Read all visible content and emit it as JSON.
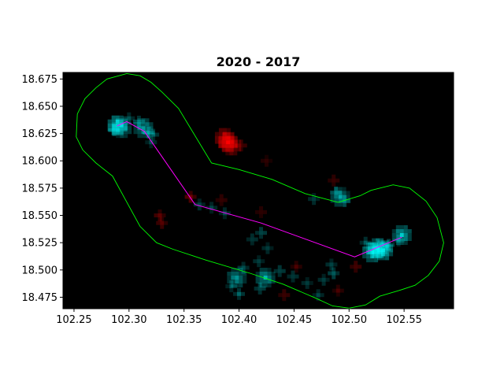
{
  "chart_data": {
    "type": "heatmap",
    "title": "2020 - 2017",
    "xlabel": "",
    "ylabel": "",
    "xlim": [
      102.24,
      102.595
    ],
    "ylim": [
      18.4645,
      18.681
    ],
    "x_ticks": [
      {
        "value": 102.25,
        "label": "102.25"
      },
      {
        "value": 102.3,
        "label": "102.30"
      },
      {
        "value": 102.35,
        "label": "102.35"
      },
      {
        "value": 102.4,
        "label": "102.40"
      },
      {
        "value": 102.45,
        "label": "102.45"
      },
      {
        "value": 102.5,
        "label": "102.50"
      },
      {
        "value": 102.55,
        "label": "102.55"
      }
    ],
    "y_ticks": [
      {
        "value": 18.675,
        "label": "18.675"
      },
      {
        "value": 18.65,
        "label": "18.650"
      },
      {
        "value": 18.625,
        "label": "18.625"
      },
      {
        "value": 18.6,
        "label": "18.600"
      },
      {
        "value": 18.575,
        "label": "18.575"
      },
      {
        "value": 18.55,
        "label": "18.550"
      },
      {
        "value": 18.525,
        "label": "18.525"
      },
      {
        "value": 18.5,
        "label": "18.500"
      },
      {
        "value": 18.475,
        "label": "18.475"
      }
    ],
    "grid": false,
    "background": "#000000",
    "colors": {
      "increase": "#00ffff",
      "decrease": "#ff0000",
      "route": "#ff00ff",
      "buffer": "#00ff00"
    },
    "route_line": [
      [
        102.289,
        18.632
      ],
      [
        102.298,
        18.636
      ],
      [
        102.314,
        18.627
      ],
      [
        102.36,
        18.56
      ],
      [
        102.42,
        18.543
      ],
      [
        102.505,
        18.512
      ],
      [
        102.548,
        18.53
      ]
    ],
    "buffer_outline": [
      [
        102.298,
        18.68
      ],
      [
        102.31,
        18.678
      ],
      [
        102.32,
        18.672
      ],
      [
        102.33,
        18.663
      ],
      [
        102.345,
        18.648
      ],
      [
        102.375,
        18.598
      ],
      [
        102.4,
        18.592
      ],
      [
        102.43,
        18.583
      ],
      [
        102.46,
        18.57
      ],
      [
        102.49,
        18.562
      ],
      [
        102.51,
        18.568
      ],
      [
        102.52,
        18.573
      ],
      [
        102.54,
        18.578
      ],
      [
        102.555,
        18.575
      ],
      [
        102.57,
        18.563
      ],
      [
        102.58,
        18.548
      ],
      [
        102.586,
        18.525
      ],
      [
        102.582,
        18.508
      ],
      [
        102.572,
        18.495
      ],
      [
        102.56,
        18.486
      ],
      [
        102.545,
        18.481
      ],
      [
        102.528,
        18.476
      ],
      [
        102.515,
        18.468
      ],
      [
        102.5,
        18.465
      ],
      [
        102.485,
        18.467
      ],
      [
        102.47,
        18.474
      ],
      [
        102.44,
        18.487
      ],
      [
        102.41,
        18.497
      ],
      [
        102.37,
        18.509
      ],
      [
        102.34,
        18.519
      ],
      [
        102.325,
        18.525
      ],
      [
        102.31,
        18.54
      ],
      [
        102.285,
        18.586
      ],
      [
        102.27,
        18.598
      ],
      [
        102.258,
        18.61
      ],
      [
        102.252,
        18.622
      ],
      [
        102.253,
        18.643
      ],
      [
        102.26,
        18.657
      ],
      [
        102.27,
        18.667
      ],
      [
        102.28,
        18.675
      ],
      [
        102.298,
        18.68
      ]
    ],
    "hotspots": [
      {
        "x": 102.2895,
        "y": 18.6325,
        "value": 1.0,
        "sign": "increase"
      },
      {
        "x": 102.2935,
        "y": 18.63,
        "value": 0.55,
        "sign": "increase"
      },
      {
        "x": 102.2865,
        "y": 18.628,
        "value": 0.45,
        "sign": "increase"
      },
      {
        "x": 102.3,
        "y": 18.639,
        "value": 0.35,
        "sign": "increase"
      },
      {
        "x": 102.309,
        "y": 18.636,
        "value": 0.4,
        "sign": "increase"
      },
      {
        "x": 102.313,
        "y": 18.63,
        "value": 0.6,
        "sign": "increase"
      },
      {
        "x": 102.318,
        "y": 18.626,
        "value": 0.45,
        "sign": "increase"
      },
      {
        "x": 102.322,
        "y": 18.624,
        "value": 0.35,
        "sign": "increase"
      },
      {
        "x": 102.32,
        "y": 18.617,
        "value": 0.25,
        "sign": "increase"
      },
      {
        "x": 102.39,
        "y": 18.617,
        "value": 0.9,
        "sign": "decrease"
      },
      {
        "x": 102.387,
        "y": 18.621,
        "value": 0.8,
        "sign": "decrease"
      },
      {
        "x": 102.393,
        "y": 18.614,
        "value": 0.7,
        "sign": "decrease"
      },
      {
        "x": 102.402,
        "y": 18.614,
        "value": 0.3,
        "sign": "decrease"
      },
      {
        "x": 102.328,
        "y": 18.55,
        "value": 0.4,
        "sign": "decrease"
      },
      {
        "x": 102.33,
        "y": 18.543,
        "value": 0.35,
        "sign": "decrease"
      },
      {
        "x": 102.356,
        "y": 18.567,
        "value": 0.45,
        "sign": "decrease"
      },
      {
        "x": 102.364,
        "y": 18.56,
        "value": 0.25,
        "sign": "increase"
      },
      {
        "x": 102.375,
        "y": 18.557,
        "value": 0.25,
        "sign": "increase"
      },
      {
        "x": 102.387,
        "y": 18.552,
        "value": 0.25,
        "sign": "increase"
      },
      {
        "x": 102.492,
        "y": 18.567,
        "value": 0.55,
        "sign": "increase"
      },
      {
        "x": 102.488,
        "y": 18.571,
        "value": 0.35,
        "sign": "increase"
      },
      {
        "x": 102.496,
        "y": 18.563,
        "value": 0.3,
        "sign": "increase"
      },
      {
        "x": 102.486,
        "y": 18.582,
        "value": 0.25,
        "sign": "decrease"
      },
      {
        "x": 102.526,
        "y": 18.52,
        "value": 1.0,
        "sign": "increase"
      },
      {
        "x": 102.531,
        "y": 18.518,
        "value": 0.9,
        "sign": "increase"
      },
      {
        "x": 102.521,
        "y": 18.516,
        "value": 0.8,
        "sign": "increase"
      },
      {
        "x": 102.536,
        "y": 18.523,
        "value": 0.45,
        "sign": "increase"
      },
      {
        "x": 102.545,
        "y": 18.527,
        "value": 0.35,
        "sign": "increase"
      },
      {
        "x": 102.548,
        "y": 18.532,
        "value": 0.7,
        "sign": "increase"
      },
      {
        "x": 102.515,
        "y": 18.525,
        "value": 0.3,
        "sign": "increase"
      },
      {
        "x": 102.506,
        "y": 18.503,
        "value": 0.35,
        "sign": "decrease"
      },
      {
        "x": 102.412,
        "y": 18.528,
        "value": 0.25,
        "sign": "increase"
      },
      {
        "x": 102.42,
        "y": 18.534,
        "value": 0.3,
        "sign": "increase"
      },
      {
        "x": 102.426,
        "y": 18.52,
        "value": 0.25,
        "sign": "increase"
      },
      {
        "x": 102.418,
        "y": 18.508,
        "value": 0.25,
        "sign": "increase"
      },
      {
        "x": 102.404,
        "y": 18.502,
        "value": 0.3,
        "sign": "increase"
      },
      {
        "x": 102.398,
        "y": 18.493,
        "value": 0.55,
        "sign": "increase"
      },
      {
        "x": 102.393,
        "y": 18.485,
        "value": 0.3,
        "sign": "increase"
      },
      {
        "x": 102.4,
        "y": 18.478,
        "value": 0.35,
        "sign": "increase"
      },
      {
        "x": 102.424,
        "y": 18.493,
        "value": 0.6,
        "sign": "increase"
      },
      {
        "x": 102.419,
        "y": 18.483,
        "value": 0.35,
        "sign": "increase"
      },
      {
        "x": 102.437,
        "y": 18.499,
        "value": 0.3,
        "sign": "increase"
      },
      {
        "x": 102.449,
        "y": 18.494,
        "value": 0.25,
        "sign": "increase"
      },
      {
        "x": 102.462,
        "y": 18.488,
        "value": 0.25,
        "sign": "increase"
      },
      {
        "x": 102.477,
        "y": 18.491,
        "value": 0.25,
        "sign": "increase"
      },
      {
        "x": 102.486,
        "y": 18.497,
        "value": 0.35,
        "sign": "increase"
      },
      {
        "x": 102.484,
        "y": 18.505,
        "value": 0.25,
        "sign": "increase"
      },
      {
        "x": 102.472,
        "y": 18.477,
        "value": 0.25,
        "sign": "increase"
      },
      {
        "x": 102.49,
        "y": 18.481,
        "value": 0.25,
        "sign": "decrease"
      },
      {
        "x": 102.452,
        "y": 18.503,
        "value": 0.25,
        "sign": "decrease"
      },
      {
        "x": 102.441,
        "y": 18.477,
        "value": 0.3,
        "sign": "decrease"
      },
      {
        "x": 102.384,
        "y": 18.564,
        "value": 0.25,
        "sign": "decrease"
      },
      {
        "x": 102.42,
        "y": 18.553,
        "value": 0.2,
        "sign": "decrease"
      },
      {
        "x": 102.425,
        "y": 18.6,
        "value": 0.2,
        "sign": "decrease"
      },
      {
        "x": 102.468,
        "y": 18.565,
        "value": 0.25,
        "sign": "increase"
      }
    ]
  }
}
